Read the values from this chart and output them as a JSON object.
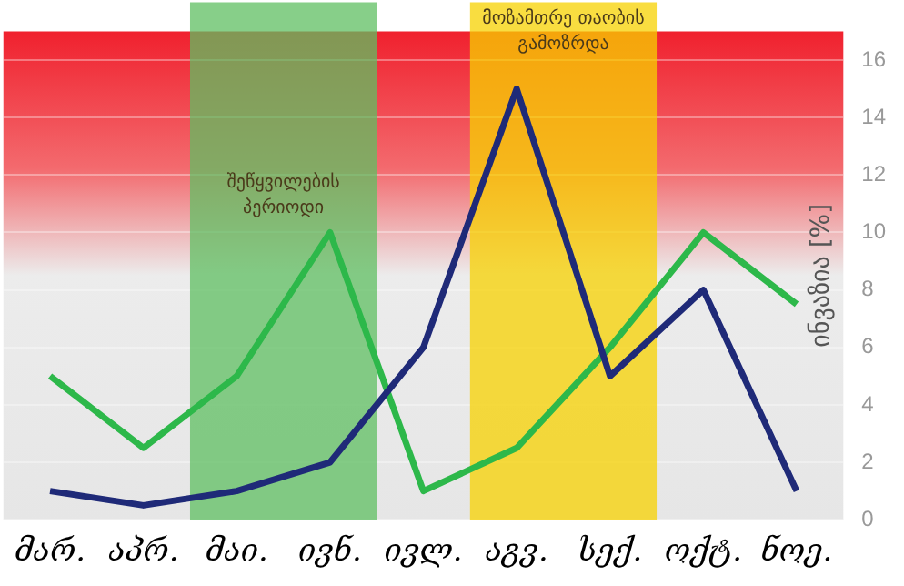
{
  "chart_data": {
    "type": "line",
    "ylabel": "ინვაზია [%]",
    "categories": [
      "მარ.",
      "აპრ.",
      "მაი.",
      "ივნ.",
      "ივლ.",
      "აგვ.",
      "სექ.",
      "ოქტ.",
      "ნოე."
    ],
    "series": [
      {
        "color": "#1f2a78",
        "values": [
          1,
          0.5,
          1,
          2,
          6,
          15,
          5,
          8,
          1
        ]
      },
      {
        "color": "#2db84a",
        "values": [
          5,
          2.5,
          5,
          10,
          1,
          2.5,
          6,
          10,
          7.5
        ]
      }
    ],
    "ylim": [
      0,
      17
    ],
    "yticks": [
      0,
      2,
      4,
      6,
      8,
      10,
      12,
      14,
      16
    ],
    "grid": "y",
    "legend": false,
    "marker": "none",
    "line_style": "solid",
    "bands": [
      {
        "axis": "x",
        "from": "მაი.",
        "to": "ივნ.",
        "label": "შეწყვილების პერიოდი",
        "color": "#5fbf62"
      },
      {
        "axis": "x",
        "from": "აგვ.",
        "to": "სექ.",
        "label": "მოზამთრე თაობის გამოზრდა",
        "color": "#f7d200"
      }
    ]
  }
}
